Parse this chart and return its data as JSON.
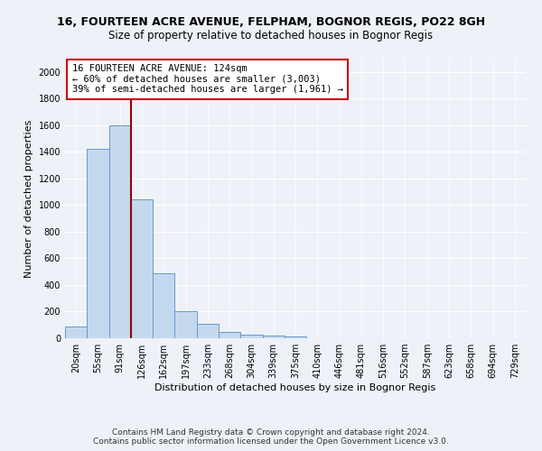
{
  "title": "16, FOURTEEN ACRE AVENUE, FELPHAM, BOGNOR REGIS, PO22 8GH",
  "subtitle": "Size of property relative to detached houses in Bognor Regis",
  "xlabel": "Distribution of detached houses by size in Bognor Regis",
  "ylabel": "Number of detached properties",
  "categories": [
    "20sqm",
    "55sqm",
    "91sqm",
    "126sqm",
    "162sqm",
    "197sqm",
    "233sqm",
    "268sqm",
    "304sqm",
    "339sqm",
    "375sqm",
    "410sqm",
    "446sqm",
    "481sqm",
    "516sqm",
    "552sqm",
    "587sqm",
    "623sqm",
    "658sqm",
    "694sqm",
    "729sqm"
  ],
  "values": [
    85,
    1420,
    1600,
    1045,
    490,
    205,
    107,
    45,
    28,
    18,
    13,
    0,
    0,
    0,
    0,
    0,
    0,
    0,
    0,
    0,
    0
  ],
  "bar_color": "#c5d9ee",
  "bar_edge_color": "#6699cc",
  "vline_color": "#990000",
  "annotation_text": "16 FOURTEEN ACRE AVENUE: 124sqm\n← 60% of detached houses are smaller (3,003)\n39% of semi-detached houses are larger (1,961) →",
  "annotation_box_color": "white",
  "annotation_box_edge": "#cc0000",
  "ylim": [
    0,
    2100
  ],
  "yticks": [
    0,
    200,
    400,
    600,
    800,
    1000,
    1200,
    1400,
    1600,
    1800,
    2000
  ],
  "footer_line1": "Contains HM Land Registry data © Crown copyright and database right 2024.",
  "footer_line2": "Contains public sector information licensed under the Open Government Licence v3.0.",
  "bg_color": "#eef2f8",
  "plot_bg_color": "#eef2f8",
  "grid_color": "white",
  "title_fontsize": 9,
  "subtitle_fontsize": 8.5,
  "label_fontsize": 8,
  "tick_fontsize": 7,
  "footer_fontsize": 6.5,
  "annot_fontsize": 7.5
}
